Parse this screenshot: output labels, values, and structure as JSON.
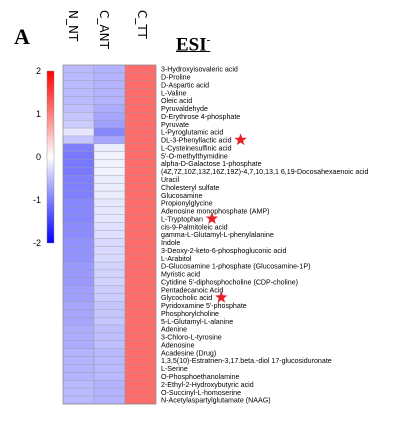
{
  "panel_label": "A",
  "columns": [
    "N_NT",
    "C_ANT",
    "C_TT"
  ],
  "title_main": "ESI",
  "title_sup": "-",
  "colorbar_ticks": [
    "2",
    "1",
    "0",
    "-1",
    "-2"
  ],
  "chart_data": {
    "type": "heatmap",
    "title": "ESI-",
    "columns": [
      "N_NT",
      "C_ANT",
      "C_TT"
    ],
    "rows": [
      "3-Hydroxyisovaleric acid",
      "D-Proline",
      "D-Aspartic acid",
      "L-Valine",
      "Oleic acid",
      "Pyruvaldehyde",
      "D-Erythrose 4-phosphate",
      "Pyruvate",
      "L-Pyroglutamic acid",
      "DL-3-Phenyllactic acid",
      "L-Cysteinesulfinic acid",
      "5'-O-methylthymidine",
      "alpha-D-Galactose 1-phosphate",
      "(4Z,7Z,10Z,13Z,16Z,19Z)-4,7,10,13,1 6,19-Docosahexaenoic acid",
      "Uracil",
      "Cholesteryl sulfate",
      "Glucosamine",
      "Propionylglycine",
      "Adenosine monophosphate (AMP)",
      "L-Tryptophan",
      "cis-9-Palmitoleic acid",
      "gamma-L-Glutamyl-L-phenylalanine",
      "Indole",
      "3-Deoxy-2-keto-6-phosphogluconic acid",
      "L-Arabitol",
      "D-Glucosamine 1-phosphate (Glucosamine-1P)",
      "Myristic acid",
      "Cytidine 5'-diphosphocholine (CDP-choline)",
      "Pentadecanoic Acid",
      "Glycocholic acid",
      "Pyridoxamine 5'-phosphate",
      "Phosphorylcholine",
      "5-L-Glutamyl-L-alanine",
      "Adenine",
      "3-Chloro-L-tyrosine",
      "Adenosine",
      "Acadesine (Drug)",
      "1,3,5(10)-Estratrien-3,17.beta.-diol 17-glucosiduronate",
      "L-Serine",
      "O-Phosphoethanolamine",
      "2-Ethyl-2-Hydroxybutyric acid",
      "O-Succinyl-L-homoserine",
      "N-Acetylaspartylglutamate (NAAG)"
    ],
    "values": [
      [
        -0.55,
        -0.6,
        1.15
      ],
      [
        -0.55,
        -0.6,
        1.15
      ],
      [
        -0.55,
        -0.6,
        1.15
      ],
      [
        -0.55,
        -0.6,
        1.15
      ],
      [
        -0.55,
        -0.6,
        1.15
      ],
      [
        -0.5,
        -0.65,
        1.15
      ],
      [
        -0.45,
        -0.7,
        1.15
      ],
      [
        -0.4,
        -0.75,
        1.15
      ],
      [
        -0.2,
        -0.95,
        1.15
      ],
      [
        -0.45,
        -0.7,
        1.15
      ],
      [
        -1.0,
        -0.15,
        1.15
      ],
      [
        -1.05,
        -0.1,
        1.15
      ],
      [
        -1.05,
        -0.1,
        1.15
      ],
      [
        -1.05,
        -0.1,
        1.15
      ],
      [
        -1.0,
        -0.15,
        1.15
      ],
      [
        -1.0,
        -0.15,
        1.15
      ],
      [
        -1.0,
        -0.15,
        1.15
      ],
      [
        -0.95,
        -0.2,
        1.15
      ],
      [
        -0.95,
        -0.2,
        1.15
      ],
      [
        -0.95,
        -0.2,
        1.15
      ],
      [
        -0.9,
        -0.25,
        1.15
      ],
      [
        -0.9,
        -0.25,
        1.15
      ],
      [
        -0.85,
        -0.3,
        1.15
      ],
      [
        -0.85,
        -0.3,
        1.15
      ],
      [
        -0.85,
        -0.3,
        1.15
      ],
      [
        -0.8,
        -0.35,
        1.15
      ],
      [
        -0.8,
        -0.35,
        1.15
      ],
      [
        -0.8,
        -0.35,
        1.15
      ],
      [
        -0.75,
        -0.4,
        1.15
      ],
      [
        -0.75,
        -0.4,
        1.15
      ],
      [
        -0.7,
        -0.45,
        1.15
      ],
      [
        -0.7,
        -0.45,
        1.15
      ],
      [
        -0.7,
        -0.45,
        1.15
      ],
      [
        -0.65,
        -0.5,
        1.15
      ],
      [
        -0.65,
        -0.5,
        1.15
      ],
      [
        -0.65,
        -0.5,
        1.15
      ],
      [
        -0.6,
        -0.55,
        1.15
      ],
      [
        -0.6,
        -0.55,
        1.15
      ],
      [
        -0.6,
        -0.55,
        1.15
      ],
      [
        -0.6,
        -0.55,
        1.15
      ],
      [
        -0.55,
        -0.6,
        1.15
      ],
      [
        -0.55,
        -0.6,
        1.15
      ],
      [
        -0.55,
        -0.6,
        1.15
      ]
    ],
    "color_scale": {
      "min": -2,
      "max": 2,
      "low_color": "#0000ff",
      "mid_color": "#ffffff",
      "high_color": "#ff0000"
    },
    "starred_rows": [
      "DL-3-Phenyllactic acid",
      "L-Tryptophan",
      "Glycocholic acid"
    ],
    "star_color": "#e8202a",
    "colorbar_ticks": [
      2,
      1,
      0,
      -1,
      -2
    ]
  }
}
